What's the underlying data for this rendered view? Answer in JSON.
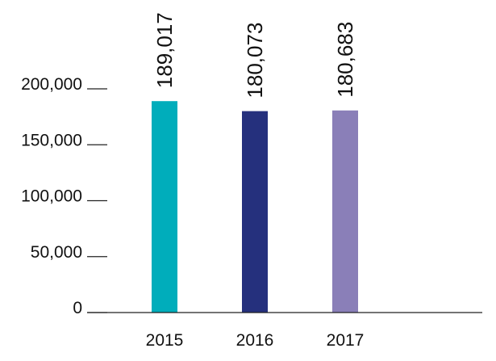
{
  "chart_data": {
    "type": "bar",
    "title": "",
    "xlabel": "",
    "ylabel": "",
    "categories": [
      "2015",
      "2016",
      "2017"
    ],
    "values": [
      189017,
      180073,
      180683
    ],
    "data_labels": [
      "189,017",
      "180,073",
      "180,683"
    ],
    "colors": [
      "#00adbb",
      "#25307d",
      "#8a7fb8"
    ],
    "ylim": [
      0,
      200000
    ],
    "yticks": [
      0,
      50000,
      100000,
      150000,
      200000
    ],
    "ytick_labels": [
      "0",
      "50,000",
      "100,000",
      "150,000",
      "200,000"
    ],
    "grid": false,
    "legend": "none",
    "data_label_orientation": "vertical"
  }
}
